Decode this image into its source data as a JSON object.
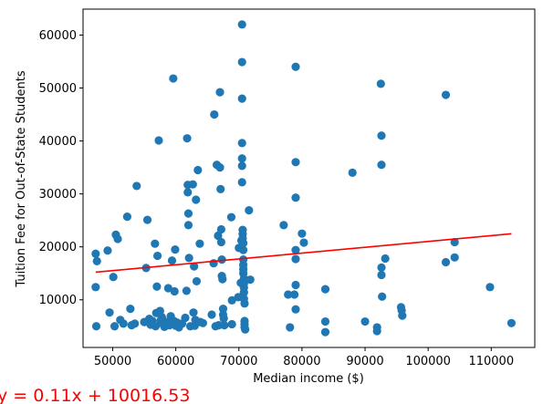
{
  "chart_data": {
    "type": "scatter",
    "xlabel": "Median income ($)",
    "ylabel": "Tuition Fee for Out-of-State Students",
    "xlim": [
      45300,
      116900
    ],
    "ylim": [
      1000,
      64900
    ],
    "xticks": [
      50000,
      60000,
      70000,
      80000,
      90000,
      100000,
      110000
    ],
    "yticks": [
      10000,
      20000,
      30000,
      40000,
      50000,
      60000
    ],
    "grid": false,
    "marker_color": "#1f77b4",
    "line_color": "#ff0000",
    "annotation": "y = 0.11x + 10016.53",
    "regression": {
      "slope": 0.11,
      "intercept": 10016.53,
      "x_range": [
        47300,
        113200
      ]
    },
    "points": [
      [
        47300,
        18700
      ],
      [
        47500,
        17300
      ],
      [
        47300,
        12400
      ],
      [
        47400,
        5000
      ],
      [
        49200,
        19300
      ],
      [
        49500,
        7600
      ],
      [
        50100,
        14300
      ],
      [
        50300,
        5000
      ],
      [
        50500,
        22300
      ],
      [
        50800,
        21500
      ],
      [
        51200,
        6200
      ],
      [
        51700,
        5500
      ],
      [
        52300,
        25700
      ],
      [
        52800,
        8300
      ],
      [
        53000,
        5200
      ],
      [
        53500,
        5500
      ],
      [
        53800,
        31500
      ],
      [
        55000,
        5800
      ],
      [
        55300,
        16000
      ],
      [
        55500,
        25100
      ],
      [
        55800,
        6400
      ],
      [
        56000,
        5300
      ],
      [
        56300,
        6000
      ],
      [
        56700,
        20600
      ],
      [
        56800,
        5000
      ],
      [
        56900,
        7500
      ],
      [
        57000,
        12500
      ],
      [
        57100,
        18300
      ],
      [
        57300,
        40100
      ],
      [
        57500,
        7900
      ],
      [
        57600,
        6100
      ],
      [
        57800,
        6700
      ],
      [
        58000,
        5400
      ],
      [
        58200,
        4900
      ],
      [
        58500,
        5800
      ],
      [
        58800,
        12200
      ],
      [
        59000,
        5200
      ],
      [
        59200,
        6900
      ],
      [
        59400,
        17400
      ],
      [
        59600,
        51800
      ],
      [
        59700,
        6000
      ],
      [
        59800,
        11600
      ],
      [
        59900,
        19500
      ],
      [
        60000,
        5100
      ],
      [
        60200,
        5700
      ],
      [
        60500,
        4800
      ],
      [
        61000,
        5500
      ],
      [
        61500,
        6600
      ],
      [
        61700,
        11700
      ],
      [
        61800,
        40500
      ],
      [
        61900,
        30300
      ],
      [
        61900,
        31700
      ],
      [
        62000,
        26300
      ],
      [
        62000,
        24100
      ],
      [
        62100,
        17900
      ],
      [
        62300,
        5000
      ],
      [
        62700,
        31800
      ],
      [
        62800,
        7600
      ],
      [
        62900,
        16300
      ],
      [
        63000,
        5100
      ],
      [
        63100,
        6200
      ],
      [
        63200,
        28900
      ],
      [
        63300,
        13500
      ],
      [
        63500,
        34500
      ],
      [
        63800,
        20600
      ],
      [
        63900,
        5800
      ],
      [
        64300,
        5600
      ],
      [
        65700,
        7200
      ],
      [
        66000,
        16900
      ],
      [
        66100,
        45000
      ],
      [
        66300,
        5000
      ],
      [
        66500,
        35500
      ],
      [
        66700,
        22100
      ],
      [
        66800,
        5200
      ],
      [
        67000,
        49200
      ],
      [
        67000,
        35000
      ],
      [
        67100,
        30900
      ],
      [
        67200,
        23300
      ],
      [
        67200,
        20900
      ],
      [
        67300,
        17600
      ],
      [
        67300,
        14500
      ],
      [
        67400,
        13900
      ],
      [
        67500,
        8300
      ],
      [
        67500,
        7200
      ],
      [
        67600,
        6500
      ],
      [
        67700,
        5200
      ],
      [
        68800,
        25600
      ],
      [
        68900,
        9900
      ],
      [
        68900,
        5400
      ],
      [
        69900,
        10500
      ],
      [
        70000,
        19800
      ],
      [
        70300,
        13200
      ],
      [
        70400,
        21200
      ],
      [
        70500,
        62000
      ],
      [
        70500,
        54900
      ],
      [
        70500,
        48000
      ],
      [
        70500,
        39600
      ],
      [
        70500,
        36700
      ],
      [
        70500,
        35300
      ],
      [
        70500,
        32200
      ],
      [
        70600,
        23200
      ],
      [
        70600,
        22400
      ],
      [
        70600,
        21600
      ],
      [
        70700,
        20700
      ],
      [
        70700,
        19400
      ],
      [
        70700,
        17600
      ],
      [
        70700,
        16600
      ],
      [
        70700,
        15800
      ],
      [
        70700,
        15000
      ],
      [
        70800,
        14000
      ],
      [
        70800,
        13100
      ],
      [
        70800,
        12300
      ],
      [
        70800,
        11400
      ],
      [
        70800,
        10200
      ],
      [
        70900,
        9300
      ],
      [
        70900,
        6000
      ],
      [
        70900,
        5400
      ],
      [
        70900,
        4800
      ],
      [
        71000,
        4400
      ],
      [
        71600,
        26900
      ],
      [
        71800,
        13800
      ],
      [
        77100,
        24100
      ],
      [
        77800,
        11000
      ],
      [
        78100,
        4800
      ],
      [
        78800,
        11000
      ],
      [
        79000,
        54000
      ],
      [
        79000,
        36000
      ],
      [
        79000,
        29300
      ],
      [
        79000,
        19400
      ],
      [
        79000,
        17700
      ],
      [
        79000,
        12800
      ],
      [
        79000,
        8200
      ],
      [
        80000,
        22500
      ],
      [
        80300,
        20800
      ],
      [
        83700,
        12000
      ],
      [
        83700,
        5900
      ],
      [
        83700,
        3900
      ],
      [
        88000,
        34000
      ],
      [
        90000,
        5900
      ],
      [
        91900,
        4800
      ],
      [
        91900,
        4100
      ],
      [
        92500,
        50800
      ],
      [
        92600,
        41000
      ],
      [
        92600,
        35500
      ],
      [
        92600,
        16100
      ],
      [
        92600,
        14700
      ],
      [
        92700,
        10600
      ],
      [
        93200,
        17800
      ],
      [
        95700,
        8600
      ],
      [
        95800,
        8000
      ],
      [
        95900,
        7000
      ],
      [
        102800,
        48700
      ],
      [
        102800,
        17100
      ],
      [
        104200,
        20900
      ],
      [
        104200,
        18000
      ],
      [
        109800,
        12400
      ],
      [
        113200,
        5600
      ]
    ]
  }
}
